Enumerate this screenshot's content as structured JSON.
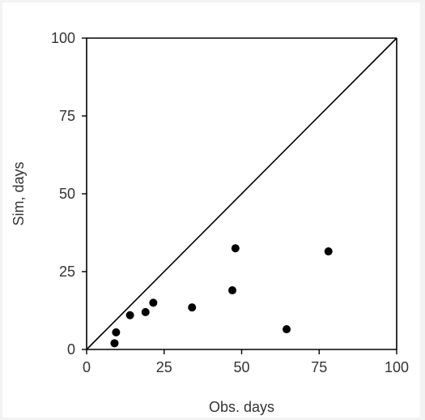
{
  "chart_data": {
    "type": "scatter",
    "title": "",
    "xlabel": "Obs. days",
    "ylabel": "Sim, days",
    "xlim": [
      0,
      100
    ],
    "ylim": [
      0,
      100
    ],
    "x_ticks": [
      "0",
      "25",
      "50",
      "75",
      "100"
    ],
    "y_ticks": [
      "0",
      "25",
      "50",
      "75",
      "100"
    ],
    "grid": false,
    "legend": "none",
    "reference_line": "1:1",
    "colors": {
      "marker": "#000000",
      "axis": "#000000",
      "text": "#333333"
    },
    "series": [
      {
        "points": [
          {
            "x": 9,
            "y": 2
          },
          {
            "x": 9.5,
            "y": 5.5
          },
          {
            "x": 14,
            "y": 11
          },
          {
            "x": 19,
            "y": 12
          },
          {
            "x": 21.5,
            "y": 15
          },
          {
            "x": 34,
            "y": 13.5
          },
          {
            "x": 47,
            "y": 19
          },
          {
            "x": 48,
            "y": 32.5
          },
          {
            "x": 64.5,
            "y": 6.5
          },
          {
            "x": 78,
            "y": 31.5
          }
        ]
      }
    ]
  }
}
